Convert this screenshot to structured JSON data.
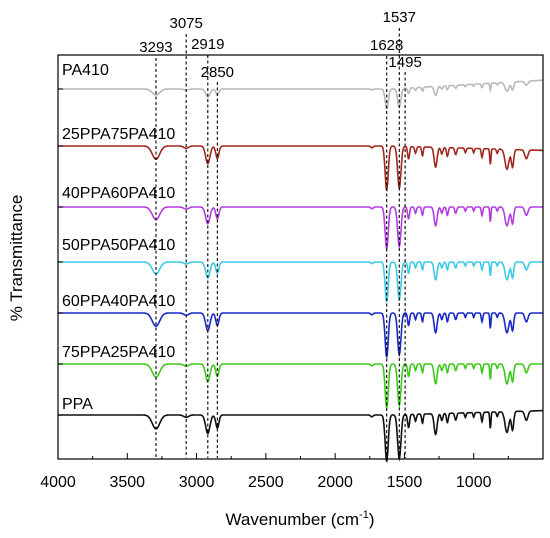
{
  "chart_data": {
    "type": "line",
    "title": "",
    "xlabel": "Wavenumber (cm",
    "xlabel_sup": "-1",
    "xlabel_end": ")",
    "ylabel": "% Transmittance",
    "xlim": [
      4000,
      500
    ],
    "x_reversed": true,
    "x_ticks": [
      4000,
      3500,
      3000,
      2500,
      2000,
      1500,
      1000
    ],
    "y_scale": "arbitrary (stacked, offset)",
    "grid": false,
    "legend": "labels above each trace",
    "peak_markers": [
      {
        "wavenumber": 3293,
        "label": "3293"
      },
      {
        "wavenumber": 3075,
        "label": "3075"
      },
      {
        "wavenumber": 2919,
        "label": "2919"
      },
      {
        "wavenumber": 2850,
        "label": "2850"
      },
      {
        "wavenumber": 1628,
        "label": "1628"
      },
      {
        "wavenumber": 1537,
        "label": "1537"
      },
      {
        "wavenumber": 1495,
        "label": "1495"
      }
    ],
    "series": [
      {
        "name": "PA410",
        "color": "#b9b9b9",
        "baseline": 0.0,
        "scale": 0.45,
        "tail_rise": 0.2
      },
      {
        "name": "25PPA75PA410",
        "color": "#a1281c",
        "baseline": 1.0,
        "scale": 1.0,
        "tail_rise": -0.1
      },
      {
        "name": "40PPA60PA410",
        "color": "#b23fe0",
        "baseline": 2.0,
        "scale": 0.95,
        "tail_rise": 0.0
      },
      {
        "name": "50PPA50PA410",
        "color": "#3fc9e6",
        "baseline": 3.0,
        "scale": 0.9,
        "tail_rise": 0.0
      },
      {
        "name": "60PPA40PA410",
        "color": "#1a2ac8",
        "baseline": 4.0,
        "scale": 1.0,
        "tail_rise": 0.0
      },
      {
        "name": "75PPA25PA410",
        "color": "#3fc81c",
        "baseline": 5.0,
        "scale": 1.0,
        "tail_rise": 0.0
      },
      {
        "name": "PPA",
        "color": "#111111",
        "baseline": 6.0,
        "scale": 1.05,
        "tail_rise": 0.1
      }
    ]
  }
}
